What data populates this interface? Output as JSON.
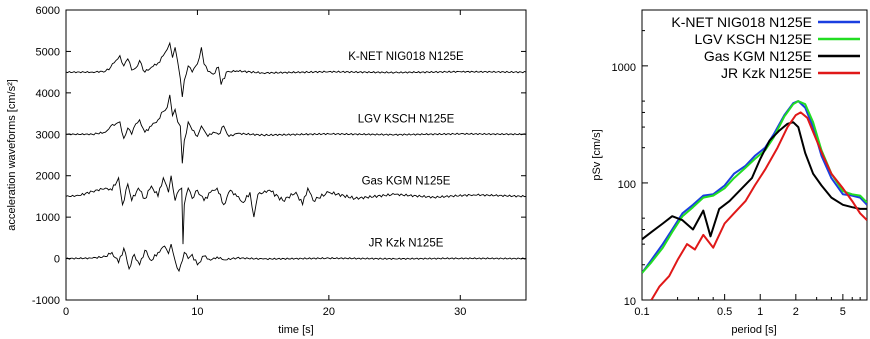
{
  "chart_data": [
    {
      "type": "line",
      "xlabel": "time [s]",
      "ylabel": "acceleration waveforms [cm/s²]",
      "xlim": [
        0,
        35
      ],
      "ylim": [
        -1000,
        6000
      ],
      "x_ticks": [
        "0",
        "10",
        "20",
        "30"
      ],
      "y_ticks": [
        "-1000",
        "0",
        "1000",
        "2000",
        "3000",
        "4000",
        "5000",
        "6000"
      ],
      "grid": false,
      "series": [
        {
          "name": "K-NET NIG018 N125E",
          "offset": 4500,
          "x": [
            0,
            2,
            3,
            3.4,
            3.8,
            4.1,
            4.4,
            4.7,
            5.0,
            5.3,
            5.6,
            6.0,
            6.5,
            7.0,
            7.4,
            7.7,
            7.9,
            8.1,
            8.3,
            8.5,
            8.7,
            8.85,
            9.0,
            9.3,
            9.6,
            10.0,
            10.3,
            10.5,
            10.8,
            11.2,
            11.6,
            11.8,
            12.2,
            13,
            15,
            20,
            25,
            30,
            35
          ],
          "y": [
            4500,
            4500,
            4520,
            4620,
            4780,
            4900,
            4650,
            4820,
            4550,
            4600,
            4780,
            4500,
            4620,
            4720,
            4900,
            5050,
            5200,
            4850,
            5100,
            4750,
            4350,
            3900,
            4300,
            4650,
            4500,
            4700,
            5100,
            4700,
            4520,
            4450,
            4620,
            4200,
            4500,
            4530,
            4480,
            4510,
            4490,
            4510,
            4500
          ]
        },
        {
          "name": "LGV KSCH N125E",
          "offset": 3000,
          "x": [
            0,
            2,
            3,
            3.4,
            3.8,
            4.1,
            4.4,
            4.7,
            5.0,
            5.3,
            5.6,
            6.0,
            6.5,
            7.0,
            7.4,
            7.7,
            7.9,
            8.1,
            8.3,
            8.5,
            8.7,
            8.85,
            9.0,
            9.3,
            9.6,
            10.0,
            10.3,
            10.5,
            10.8,
            11.2,
            11.6,
            12.0,
            12.4,
            13,
            15,
            20,
            25,
            30,
            35
          ],
          "y": [
            3000,
            3000,
            3050,
            3200,
            3250,
            3300,
            2900,
            3150,
            3000,
            3250,
            3350,
            3050,
            3200,
            3350,
            3550,
            3650,
            3950,
            3450,
            3600,
            3300,
            3200,
            2300,
            2850,
            3300,
            3100,
            2950,
            3200,
            3100,
            2950,
            3050,
            3000,
            3200,
            2950,
            3020,
            2980,
            3010,
            2990,
            3010,
            3000
          ]
        },
        {
          "name": "Gas KGM N125E",
          "offset": 1500,
          "x": [
            0,
            1,
            2,
            3,
            3.5,
            4.0,
            4.3,
            4.7,
            5.0,
            5.5,
            6.0,
            6.5,
            7.0,
            7.4,
            7.8,
            8.0,
            8.3,
            8.6,
            8.8,
            8.9,
            9.0,
            9.3,
            9.6,
            10.0,
            10.5,
            11.0,
            11.5,
            12.0,
            12.5,
            13.0,
            13.5,
            14.0,
            14.3,
            14.6,
            15.5,
            16.5,
            17.5,
            18.0,
            18.4,
            18.8,
            20,
            22,
            25,
            28,
            31,
            35
          ],
          "y": [
            1500,
            1520,
            1620,
            1700,
            1650,
            1950,
            1300,
            1800,
            1400,
            1700,
            1450,
            1750,
            1500,
            1950,
            1600,
            2000,
            1400,
            1650,
            1700,
            350,
            1300,
            1700,
            1450,
            1650,
            1400,
            1600,
            1700,
            1300,
            1650,
            1500,
            1350,
            1600,
            1000,
            1550,
            1650,
            1400,
            1600,
            1300,
            1700,
            1400,
            1600,
            1450,
            1550,
            1480,
            1540,
            1500
          ]
        },
        {
          "name": "JR Kzk N125E",
          "offset": 0,
          "x": [
            0,
            2,
            3,
            3.5,
            4.0,
            4.4,
            4.8,
            5.2,
            5.6,
            6.0,
            6.5,
            7.0,
            7.5,
            7.8,
            8.0,
            8.3,
            8.6,
            9.0,
            9.3,
            9.6,
            10.0,
            10.5,
            11.0,
            11.5,
            12.0,
            13,
            15,
            20,
            25,
            30,
            35
          ],
          "y": [
            0,
            10,
            50,
            150,
            -100,
            250,
            -250,
            100,
            -150,
            200,
            -50,
            150,
            300,
            120,
            350,
            -50,
            -300,
            150,
            0,
            100,
            -150,
            60,
            -40,
            40,
            -30,
            15,
            -10,
            8,
            -5,
            5,
            0
          ]
        }
      ]
    },
    {
      "type": "line",
      "xlabel": "period [s]",
      "ylabel": "pSv [cm/s]",
      "xscale": "log",
      "yscale": "log",
      "xlim": [
        0.1,
        8
      ],
      "ylim": [
        10,
        3000
      ],
      "x_ticks": [
        "0.1",
        "0.5",
        "1",
        "2",
        "5"
      ],
      "y_ticks": [
        "10",
        "100",
        "1000"
      ],
      "grid": false,
      "legend_position": "top-right",
      "series": [
        {
          "name": "K-NET NIG018 N125E",
          "color": "#1a3ee0",
          "x": [
            0.1,
            0.12,
            0.15,
            0.18,
            0.22,
            0.27,
            0.33,
            0.4,
            0.5,
            0.6,
            0.75,
            0.9,
            1.1,
            1.3,
            1.6,
            1.9,
            2.1,
            2.4,
            2.8,
            3.3,
            4,
            5,
            6,
            7,
            8
          ],
          "y": [
            17,
            22,
            30,
            40,
            55,
            65,
            78,
            80,
            95,
            120,
            140,
            170,
            200,
            260,
            380,
            480,
            500,
            440,
            300,
            170,
            110,
            80,
            78,
            75,
            65
          ]
        },
        {
          "name": "LGV KSCH N125E",
          "color": "#22dd22",
          "x": [
            0.1,
            0.12,
            0.15,
            0.18,
            0.22,
            0.27,
            0.33,
            0.4,
            0.5,
            0.6,
            0.75,
            0.9,
            1.1,
            1.3,
            1.6,
            1.9,
            2.1,
            2.4,
            2.8,
            3.3,
            4,
            5,
            6,
            7,
            8
          ],
          "y": [
            17,
            21,
            28,
            38,
            52,
            62,
            75,
            78,
            90,
            110,
            135,
            160,
            190,
            245,
            370,
            470,
            500,
            470,
            330,
            190,
            120,
            85,
            80,
            78,
            68
          ]
        },
        {
          "name": "Gas KGM N125E",
          "color": "#000000",
          "x": [
            0.1,
            0.12,
            0.15,
            0.18,
            0.22,
            0.27,
            0.33,
            0.38,
            0.45,
            0.55,
            0.7,
            0.85,
            1.0,
            1.2,
            1.45,
            1.7,
            1.9,
            2.1,
            2.4,
            2.8,
            3.3,
            4,
            5,
            6,
            7,
            8
          ],
          "y": [
            33,
            38,
            45,
            52,
            48,
            40,
            58,
            35,
            60,
            70,
            90,
            110,
            160,
            230,
            280,
            320,
            330,
            300,
            180,
            120,
            95,
            75,
            65,
            62,
            60,
            60
          ]
        },
        {
          "name": "JR Kzk N125E",
          "color": "#e01818",
          "x": [
            0.12,
            0.14,
            0.17,
            0.2,
            0.24,
            0.28,
            0.33,
            0.4,
            0.5,
            0.6,
            0.75,
            0.9,
            1.1,
            1.4,
            1.7,
            2.0,
            2.2,
            2.5,
            2.9,
            3.4,
            4,
            5,
            6,
            7,
            8
          ],
          "y": [
            10,
            13,
            16,
            22,
            30,
            27,
            36,
            28,
            45,
            55,
            70,
            95,
            130,
            200,
            300,
            380,
            400,
            360,
            250,
            170,
            120,
            90,
            70,
            55,
            48
          ]
        }
      ]
    }
  ]
}
